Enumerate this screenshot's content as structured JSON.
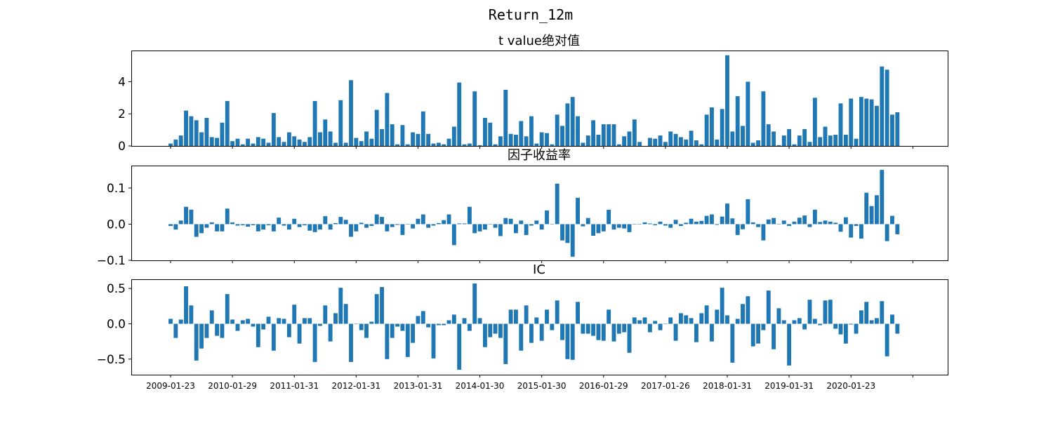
{
  "figure": {
    "title": "Return_12m"
  },
  "chart_data": {
    "type": "bar",
    "title": "Return_12m",
    "bar_color": "#1f77b4",
    "dates": [
      "2009-01-23",
      "2009-02-27",
      "2009-03-31",
      "2009-04-30",
      "2009-05-27",
      "2009-06-30",
      "2009-07-31",
      "2009-08-31",
      "2009-09-30",
      "2009-10-30",
      "2009-11-30",
      "2009-12-31",
      "2010-01-29",
      "2010-02-26",
      "2010-03-31",
      "2010-04-30",
      "2010-05-31",
      "2010-06-30",
      "2010-07-30",
      "2010-08-31",
      "2010-09-30",
      "2010-10-29",
      "2010-11-30",
      "2010-12-31",
      "2011-01-31",
      "2011-02-28",
      "2011-03-31",
      "2011-04-29",
      "2011-05-31",
      "2011-06-30",
      "2011-07-29",
      "2011-08-31",
      "2011-09-30",
      "2011-10-31",
      "2011-11-30",
      "2011-12-30",
      "2012-01-31",
      "2012-02-29",
      "2012-03-30",
      "2012-04-27",
      "2012-05-31",
      "2012-06-29",
      "2012-07-31",
      "2012-08-31",
      "2012-09-28",
      "2012-10-31",
      "2012-11-30",
      "2012-12-31",
      "2013-01-31",
      "2013-02-28",
      "2013-03-29",
      "2013-04-26",
      "2013-05-31",
      "2013-06-28",
      "2013-07-31",
      "2013-08-30",
      "2013-09-30",
      "2013-10-31",
      "2013-11-29",
      "2013-12-31",
      "2014-01-30",
      "2014-02-28",
      "2014-03-31",
      "2014-04-30",
      "2014-05-30",
      "2014-06-30",
      "2014-07-31",
      "2014-08-29",
      "2014-09-30",
      "2014-10-31",
      "2014-11-28",
      "2014-12-31",
      "2015-01-30",
      "2015-02-27",
      "2015-03-31",
      "2015-04-30",
      "2015-05-29",
      "2015-06-30",
      "2015-07-31",
      "2015-08-31",
      "2015-09-30",
      "2015-10-30",
      "2015-11-30",
      "2015-12-31",
      "2016-01-29",
      "2016-02-29",
      "2016-03-31",
      "2016-04-29",
      "2016-05-31",
      "2016-06-30",
      "2016-07-29",
      "2016-08-31",
      "2016-09-30",
      "2016-10-31",
      "2016-11-30",
      "2016-12-30",
      "2017-01-26",
      "2017-02-28",
      "2017-03-31",
      "2017-04-28",
      "2017-05-31",
      "2017-06-30",
      "2017-07-31",
      "2017-08-31",
      "2017-09-29",
      "2017-10-31",
      "2017-11-30",
      "2017-12-29",
      "2018-01-31",
      "2018-02-28",
      "2018-03-30",
      "2018-04-27",
      "2018-05-31",
      "2018-06-29",
      "2018-07-31",
      "2018-08-31",
      "2018-09-28",
      "2018-10-31",
      "2018-11-30",
      "2018-12-28",
      "2019-01-31",
      "2019-02-28",
      "2019-03-29",
      "2019-04-30",
      "2019-05-31",
      "2019-06-28",
      "2019-07-31",
      "2019-08-30",
      "2019-09-30",
      "2019-10-31",
      "2019-11-29",
      "2019-12-31",
      "2020-01-23",
      "2020-02-28",
      "2020-03-31",
      "2020-04-30",
      "2020-05-29",
      "2020-06-30",
      "2020-07-31",
      "2020-08-31",
      "2020-09-30",
      "2020-10-30",
      "2020-11-30",
      "2020-12-31"
    ],
    "xticks": [
      "2009-01-23",
      "2010-01-29",
      "2011-01-31",
      "2012-01-31",
      "2013-01-31",
      "2014-01-30",
      "2015-01-30",
      "2016-01-29",
      "2017-01-26",
      "2018-01-31",
      "2019-01-31",
      "2020-01-23"
    ],
    "panels": [
      {
        "title": "t value绝对值",
        "ylim": [
          0,
          5.9
        ],
        "yticks": [
          0,
          2,
          4
        ],
        "ytick_labels": [
          "0",
          "2",
          "4"
        ],
        "values": [
          0.15,
          0.4,
          0.65,
          2.2,
          1.85,
          1.6,
          0.85,
          1.75,
          0.55,
          0.5,
          1.45,
          2.8,
          0.3,
          0.45,
          0.1,
          0.45,
          0.15,
          0.55,
          0.45,
          0.2,
          2.05,
          0.55,
          0.25,
          0.85,
          0.6,
          0.4,
          0.25,
          0.55,
          2.8,
          0.85,
          1.65,
          0.9,
          0.2,
          2.85,
          0.2,
          4.1,
          0.5,
          0.3,
          0.9,
          0.45,
          2.25,
          1.05,
          3.3,
          1.35,
          0.1,
          1.3,
          0.1,
          0.85,
          0.75,
          2.15,
          0.75,
          0.15,
          0.2,
          0.1,
          0.45,
          1.2,
          3.95,
          0.1,
          0.15,
          3.4,
          0.05,
          1.75,
          1.45,
          0.1,
          0.6,
          3.5,
          0.75,
          0.7,
          1.55,
          0.6,
          1.85,
          0.15,
          0.85,
          0.8,
          0.1,
          1.95,
          1.25,
          2.65,
          3.05,
          1.85,
          0.2,
          0.65,
          1.6,
          0.7,
          1.35,
          1.35,
          1.35,
          0.1,
          0.6,
          0.9,
          1.65,
          0.25,
          0.0,
          0.5,
          0.45,
          0.65,
          0.25,
          0.9,
          0.75,
          0.55,
          0.4,
          0.95,
          0.35,
          0.1,
          1.95,
          2.4,
          0.4,
          2.3,
          5.65,
          0.9,
          3.1,
          1.25,
          4.0,
          0.2,
          0.35,
          3.4,
          1.35,
          0.9,
          0.05,
          0.65,
          1.05,
          0.1,
          0.65,
          1.05,
          0.25,
          3.0,
          0.55,
          1.2,
          0.65,
          0.7,
          2.65,
          0.7,
          2.95,
          0.45,
          3.05,
          2.95,
          2.9,
          2.5,
          4.95,
          4.75,
          1.95,
          2.1
        ]
      },
      {
        "title": "因子收益率",
        "ylim": [
          -0.1,
          0.16
        ],
        "yticks": [
          -0.1,
          0.0,
          0.1
        ],
        "ytick_labels": [
          "−0.1",
          "0.0",
          "0.1"
        ],
        "values": [
          -0.005,
          -0.015,
          0.01,
          0.048,
          0.04,
          -0.035,
          -0.025,
          -0.01,
          0.005,
          -0.02,
          -0.02,
          0.043,
          0.005,
          -0.004,
          -0.003,
          -0.007,
          -0.003,
          -0.02,
          -0.015,
          -0.003,
          -0.02,
          0.018,
          -0.004,
          -0.015,
          0.015,
          -0.008,
          -0.003,
          -0.018,
          -0.022,
          -0.015,
          0.022,
          -0.015,
          0.003,
          0.02,
          0.012,
          -0.035,
          -0.02,
          0.004,
          -0.01,
          -0.005,
          0.027,
          0.02,
          -0.02,
          -0.008,
          -0.002,
          -0.03,
          -0.001,
          -0.012,
          0.015,
          0.027,
          -0.01,
          -0.004,
          0.003,
          0.011,
          0.027,
          -0.058,
          0.002,
          0.002,
          0.048,
          -0.025,
          -0.02,
          -0.015,
          0.0,
          -0.01,
          -0.033,
          0.017,
          0.015,
          -0.025,
          0.01,
          -0.03,
          -0.004,
          0.01,
          -0.015,
          0.038,
          0.0,
          0.112,
          -0.045,
          -0.052,
          -0.09,
          0.073,
          -0.006,
          0.017,
          -0.032,
          -0.025,
          -0.02,
          0.04,
          -0.015,
          -0.01,
          -0.012,
          -0.022,
          0.0,
          0.0,
          0.005,
          0.002,
          -0.003,
          0.007,
          -0.004,
          -0.01,
          0.012,
          -0.005,
          0.004,
          0.015,
          0.007,
          0.009,
          0.023,
          0.027,
          -0.002,
          0.021,
          0.057,
          0.016,
          -0.03,
          -0.014,
          0.069,
          0.005,
          -0.008,
          -0.045,
          0.013,
          0.017,
          -0.001,
          0.01,
          -0.005,
          0.007,
          0.018,
          0.024,
          -0.008,
          0.04,
          0.006,
          0.01,
          0.007,
          0.004,
          -0.021,
          0.019,
          -0.037,
          -0.005,
          -0.04,
          0.087,
          0.05,
          0.08,
          0.15,
          -0.047,
          0.023,
          -0.028
        ]
      },
      {
        "title": "IC",
        "ylim": [
          -0.72,
          0.62
        ],
        "yticks": [
          -0.5,
          0.0,
          0.5
        ],
        "ytick_labels": [
          "−0.5",
          "0.0",
          "0.5"
        ],
        "values": [
          0.07,
          -0.2,
          0.06,
          0.53,
          0.26,
          -0.52,
          -0.35,
          -0.2,
          0.19,
          -0.17,
          -0.2,
          0.42,
          0.06,
          -0.1,
          0.05,
          0.07,
          -0.04,
          -0.33,
          -0.08,
          0.1,
          -0.38,
          0.08,
          0.07,
          -0.19,
          0.27,
          -0.28,
          0.08,
          0.08,
          -0.54,
          -0.03,
          0.26,
          -0.25,
          0.15,
          0.51,
          0.28,
          -0.54,
          0.0,
          -0.09,
          -0.2,
          0.03,
          0.42,
          0.52,
          -0.5,
          -0.2,
          -0.04,
          -0.1,
          -0.47,
          -0.27,
          0.11,
          0.18,
          -0.05,
          -0.49,
          -0.02,
          -0.02,
          0.05,
          0.13,
          -0.65,
          0.08,
          -0.1,
          0.57,
          0.08,
          -0.33,
          -0.19,
          -0.14,
          -0.2,
          -0.57,
          0.2,
          0.2,
          -0.38,
          0.26,
          -0.27,
          0.09,
          -0.24,
          0.2,
          -0.09,
          0.33,
          -0.23,
          -0.5,
          -0.51,
          0.31,
          -0.14,
          -0.14,
          -0.17,
          -0.23,
          -0.24,
          0.2,
          -0.25,
          -0.14,
          -0.12,
          -0.41,
          0.09,
          0.05,
          0.09,
          -0.12,
          0.04,
          -0.09,
          0.0,
          0.09,
          -0.24,
          0.15,
          0.12,
          0.08,
          -0.26,
          0.15,
          0.26,
          -0.25,
          0.2,
          0.51,
          0.12,
          -0.55,
          0.07,
          0.28,
          0.39,
          -0.32,
          -0.28,
          -0.09,
          0.47,
          -0.36,
          0.22,
          0.05,
          -0.59,
          0.05,
          0.08,
          -0.08,
          0.34,
          0.07,
          -0.02,
          0.33,
          0.34,
          -0.07,
          -0.15,
          -0.28,
          -0.01,
          -0.14,
          0.19,
          0.31,
          0.05,
          0.08,
          0.32,
          -0.46,
          0.13,
          -0.14
        ]
      }
    ]
  }
}
